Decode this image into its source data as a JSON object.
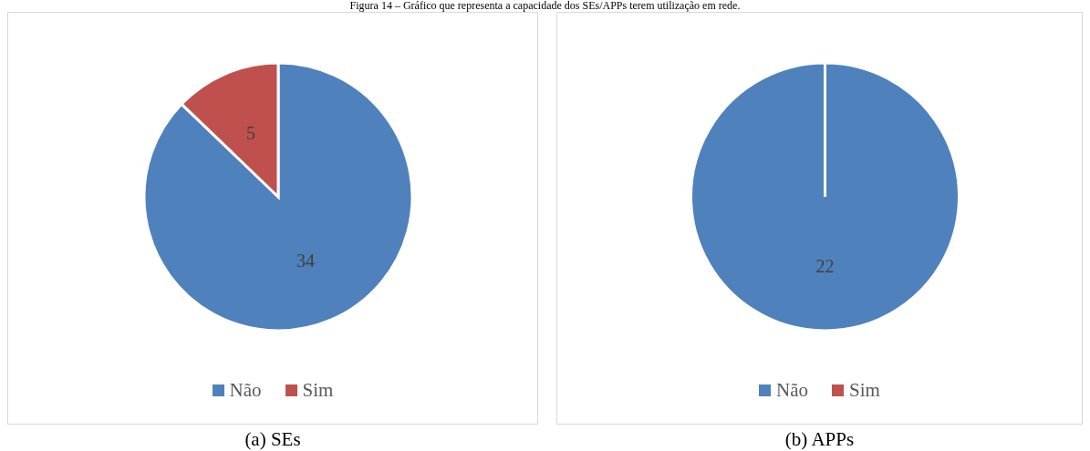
{
  "chart_data": [
    {
      "type": "pie",
      "title": "Figura 14 – Gráfico que representa a capacidade dos SEs/APPs terem utilização em rede.",
      "subtitle": "(a) SEs",
      "categories": [
        "Não",
        "Sim"
      ],
      "values": [
        34,
        5
      ],
      "colors": [
        "#4f81bd",
        "#c0504d"
      ],
      "data_labels": true,
      "legend": "bottom"
    },
    {
      "type": "pie",
      "subtitle": "(b) APPs",
      "categories": [
        "Não",
        "Sim"
      ],
      "values": [
        22,
        0
      ],
      "colors": [
        "#4f81bd",
        "#c0504d"
      ],
      "value_labels": [
        "22",
        null
      ],
      "legend": "bottom"
    }
  ]
}
